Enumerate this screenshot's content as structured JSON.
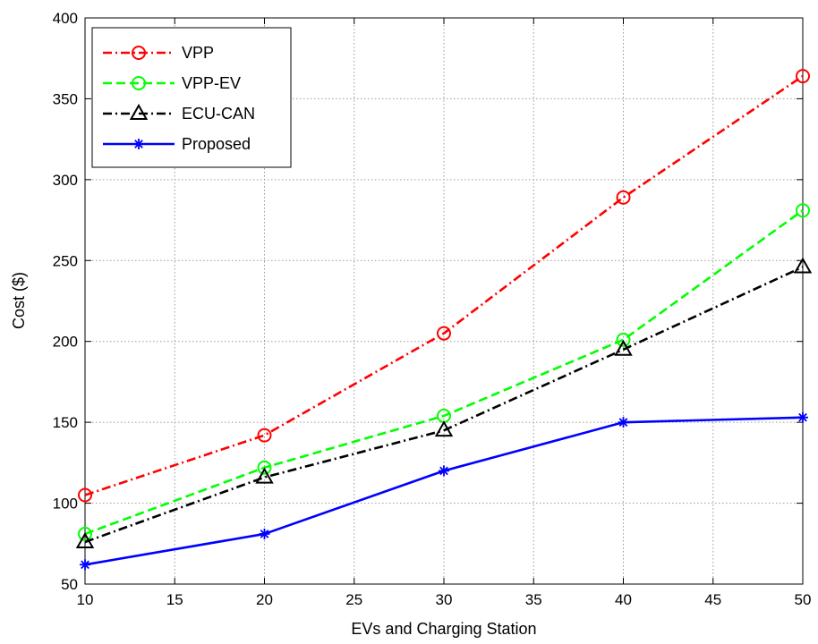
{
  "chart_data": {
    "type": "line",
    "title": "",
    "xlabel": "EVs and Charging Station",
    "ylabel": "Cost ($)",
    "xlim": [
      10,
      50
    ],
    "ylim": [
      50,
      400
    ],
    "xticks": [
      10,
      15,
      20,
      25,
      30,
      35,
      40,
      45,
      50
    ],
    "yticks": [
      50,
      100,
      150,
      200,
      250,
      300,
      350,
      400
    ],
    "grid": true,
    "legend_position": "top-left",
    "x": [
      10,
      20,
      30,
      40,
      50
    ],
    "series": [
      {
        "name": "VPP",
        "values": [
          105,
          142,
          205,
          289,
          364
        ],
        "color": "#ff0000",
        "dash": "dashdot",
        "marker": "circle"
      },
      {
        "name": "VPP-EV",
        "values": [
          81,
          122,
          154,
          201,
          281
        ],
        "color": "#00ff00",
        "dash": "dashed",
        "marker": "circle"
      },
      {
        "name": "ECU-CAN",
        "values": [
          76,
          116,
          145,
          195,
          246
        ],
        "color": "#000000",
        "dash": "dashdot",
        "marker": "triangle"
      },
      {
        "name": "Proposed",
        "values": [
          62,
          81,
          120,
          150,
          153
        ],
        "color": "#0000ff",
        "dash": "solid",
        "marker": "star"
      }
    ]
  }
}
